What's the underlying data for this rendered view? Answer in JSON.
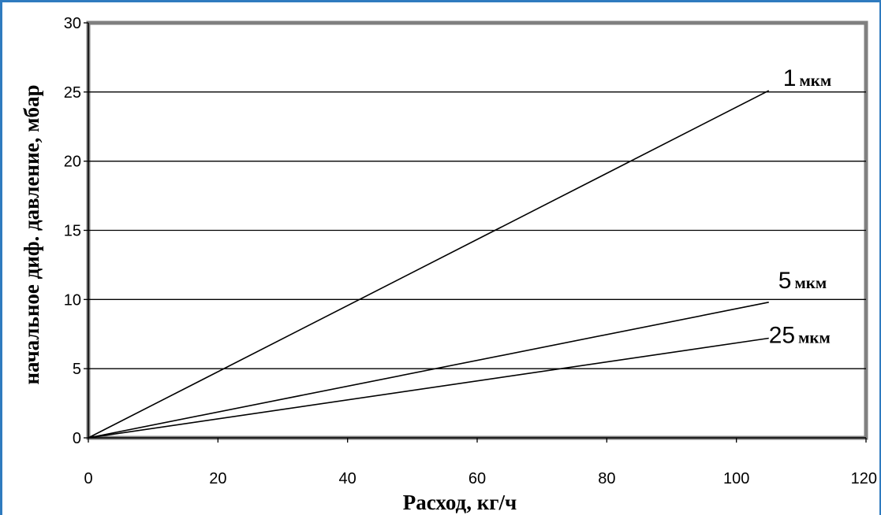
{
  "chart_data": {
    "type": "line",
    "xlabel": "Расход, кг/ч",
    "ylabel": "начальное диф. давление, мбар",
    "xlim": [
      0,
      120
    ],
    "ylim": [
      0,
      30
    ],
    "x_ticks": [
      0,
      20,
      40,
      60,
      80,
      100,
      120
    ],
    "y_ticks": [
      0,
      5,
      10,
      15,
      20,
      25,
      30
    ],
    "grid": "horizontal",
    "series": [
      {
        "name": "1",
        "unit": "мкм",
        "x": [
          0,
          105
        ],
        "y": [
          0,
          25.1
        ]
      },
      {
        "name": "5",
        "unit": "мкм",
        "x": [
          0,
          105
        ],
        "y": [
          0,
          9.8
        ]
      },
      {
        "name": "25",
        "unit": "мкм",
        "x": [
          0,
          105
        ],
        "y": [
          0,
          7.2
        ]
      }
    ]
  }
}
